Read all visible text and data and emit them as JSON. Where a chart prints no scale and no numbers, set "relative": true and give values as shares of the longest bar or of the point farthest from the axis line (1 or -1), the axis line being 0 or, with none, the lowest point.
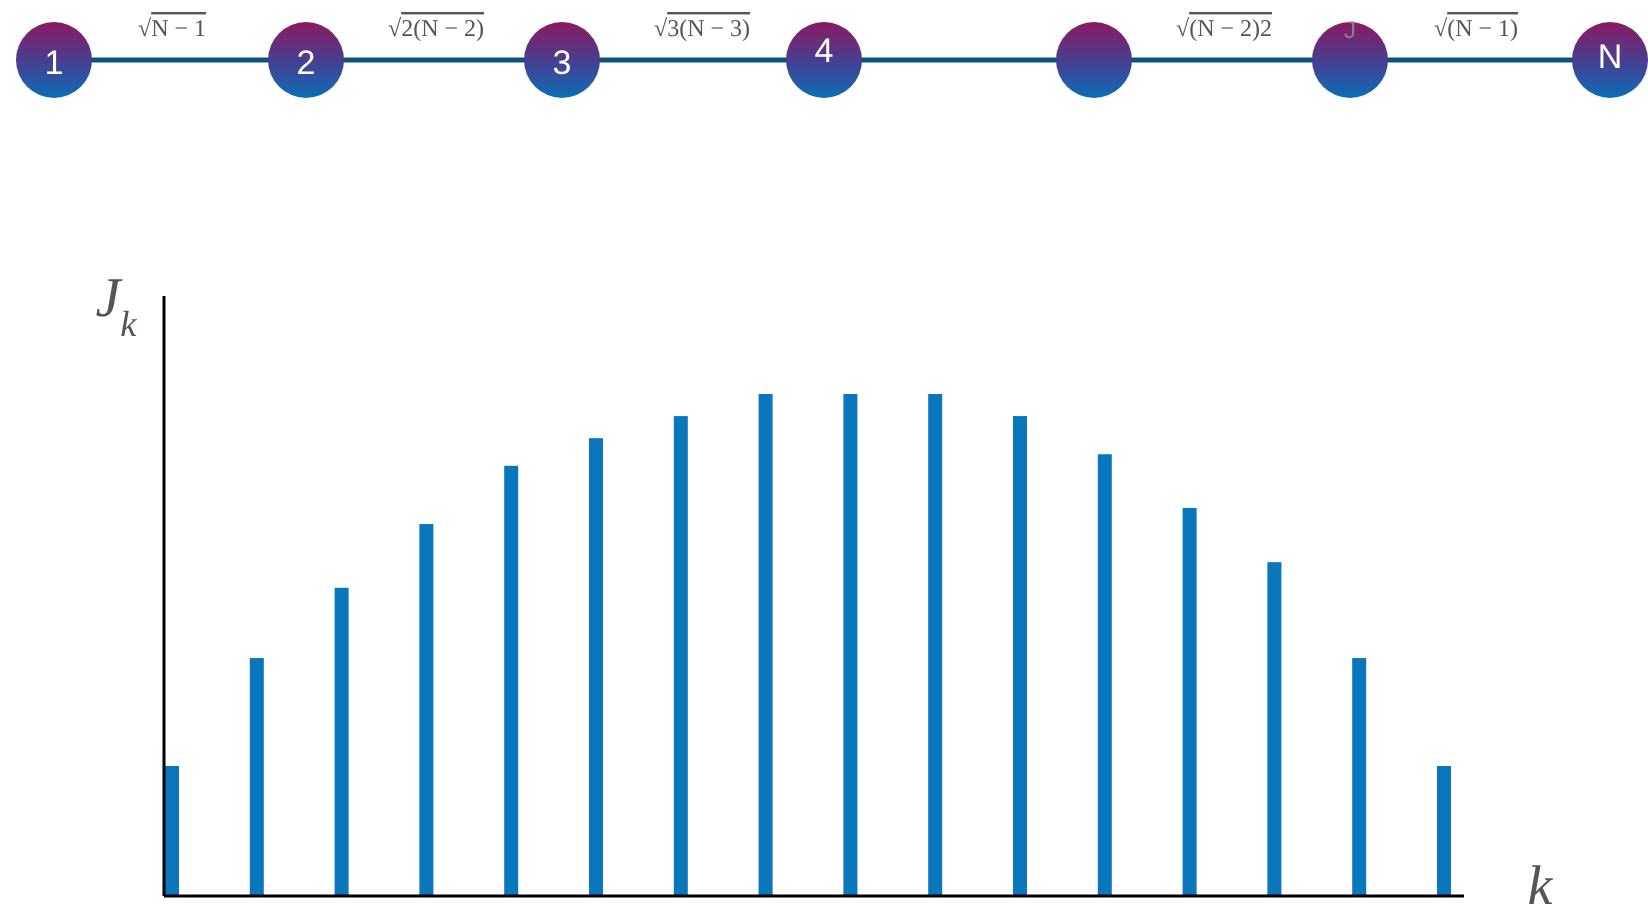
{
  "chart_data": {
    "type": "bar",
    "relative": true,
    "categories": [
      null,
      null,
      null,
      null,
      null,
      null,
      null,
      null,
      null,
      null,
      null,
      null,
      null,
      null,
      null,
      null
    ],
    "values": [
      0.259,
      0.474,
      0.614,
      0.741,
      0.857,
      0.912,
      0.956,
      1,
      1,
      1,
      0.956,
      0.88,
      0.773,
      0.665,
      0.474,
      0.259
    ],
    "color": "#0a77bd",
    "xlabel": "k",
    "ylabel": "J$_{k}$",
    "annotations": [
      "1",
      "2",
      "3",
      "4",
      "J",
      "N",
      "√N − 1",
      "√2(N − 2)",
      "√3(N − 3)",
      "√(N − 2)2",
      "√(N − 1)"
    ]
  }
}
